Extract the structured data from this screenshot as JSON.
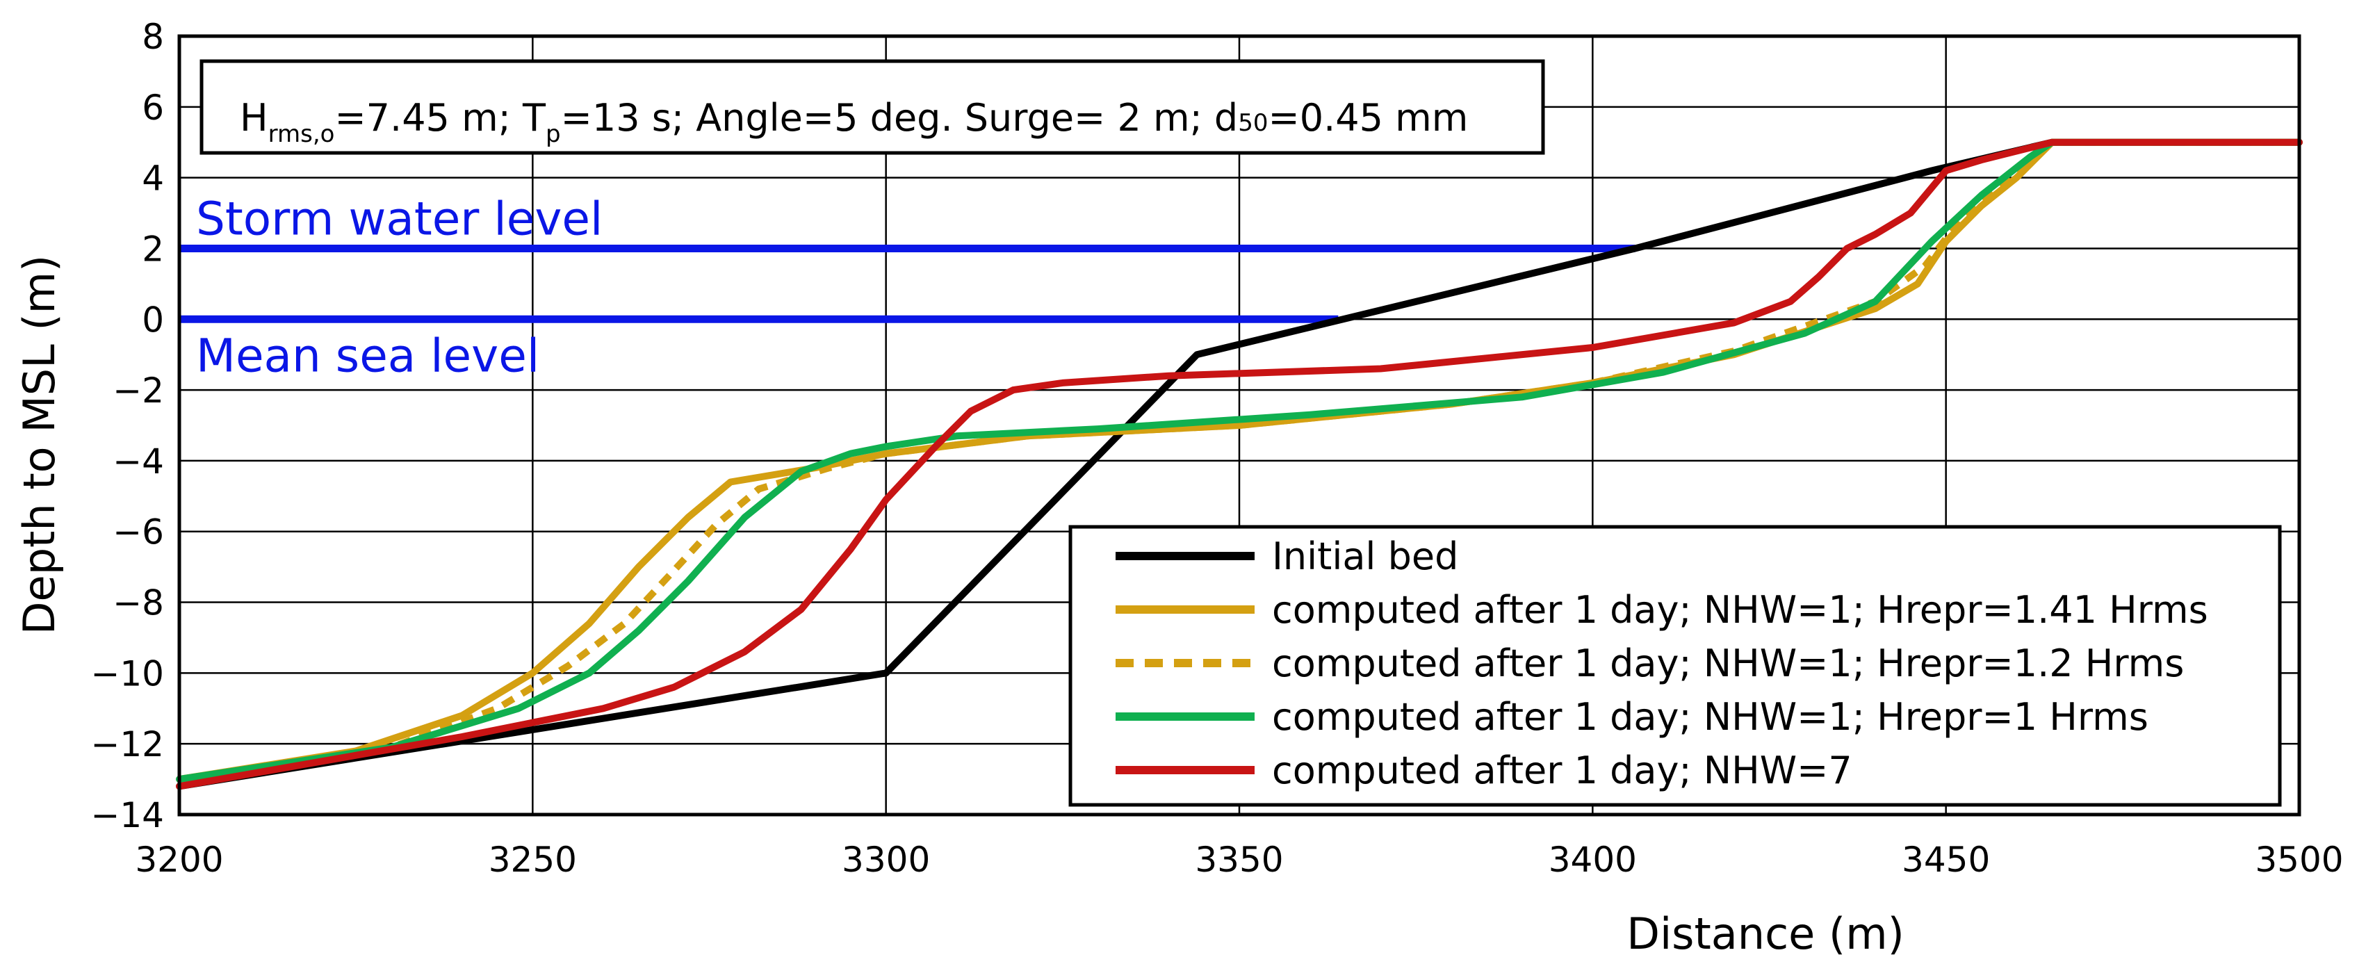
{
  "chart_data": {
    "type": "line",
    "title": "",
    "xlabel": "Distance (m)",
    "ylabel": "Depth to MSL (m)",
    "xlim": [
      3200,
      3500
    ],
    "ylim": [
      -14,
      8
    ],
    "xticks": [
      3200,
      3250,
      3300,
      3350,
      3400,
      3450,
      3500
    ],
    "yticks": [
      8,
      6,
      4,
      2,
      0,
      -2,
      -4,
      -6,
      -8,
      -10,
      -12,
      -14
    ],
    "grid": true,
    "info_box": {
      "line1_a": "H",
      "line1_b": "rms,o",
      "line1_c": "=7.45 m; T",
      "line1_d": "p",
      "line1_e": "=13 s; Angle=5 deg.  Surge= 2 m; d",
      "line1_f": "50",
      "line1_g": "=0.45 mm"
    },
    "water_levels": [
      {
        "name": "Storm water level",
        "y": 2,
        "x_end": 3406,
        "color": "#0a16e6"
      },
      {
        "name": "Mean sea level",
        "y": 0,
        "x_end": 3364,
        "color": "#0a16e6"
      }
    ],
    "legend_position": "bottom-right",
    "series": [
      {
        "name": "Initial bed",
        "color": "#000000",
        "dash": "",
        "x": [
          3200,
          3300,
          3344,
          3406,
          3448,
          3465,
          3500
        ],
        "y": [
          -13.2,
          -10,
          -1,
          2,
          4.2,
          5,
          5
        ]
      },
      {
        "name": "computed after 1 day; NHW=1; Hrepr=1.41 Hrms",
        "color": "#d4a012",
        "dash": "",
        "x": [
          3200,
          3225,
          3240,
          3250,
          3258,
          3265,
          3272,
          3278,
          3290,
          3300,
          3320,
          3350,
          3380,
          3400,
          3420,
          3440,
          3446,
          3450,
          3455,
          3460,
          3465,
          3500
        ],
        "y": [
          -13.0,
          -12.2,
          -11.2,
          -10.0,
          -8.6,
          -7.0,
          -5.6,
          -4.6,
          -4.2,
          -3.8,
          -3.3,
          -3.0,
          -2.4,
          -1.8,
          -1.0,
          0.3,
          1.0,
          2.2,
          3.2,
          4.0,
          5.0,
          5.0
        ]
      },
      {
        "name": "computed after 1 day; NHW=1; Hrepr=1.2 Hrms",
        "color": "#d4a012",
        "dash": "18,14",
        "x": [
          3200,
          3230,
          3245,
          3255,
          3263,
          3270,
          3276,
          3282,
          3292,
          3300,
          3320,
          3350,
          3380,
          3400,
          3420,
          3440,
          3447,
          3452,
          3458,
          3465,
          3500
        ],
        "y": [
          -13.0,
          -12.1,
          -11.0,
          -9.8,
          -8.6,
          -7.1,
          -5.8,
          -4.8,
          -4.2,
          -3.8,
          -3.3,
          -3.0,
          -2.4,
          -1.8,
          -0.9,
          0.5,
          1.5,
          2.8,
          3.8,
          5.0,
          5.0
        ]
      },
      {
        "name": "computed after 1 day; NHW=1; Hrepr=1 Hrms",
        "color": "#10b050",
        "dash": "",
        "x": [
          3200,
          3230,
          3248,
          3258,
          3265,
          3272,
          3280,
          3288,
          3295,
          3300,
          3310,
          3330,
          3360,
          3390,
          3410,
          3430,
          3440,
          3448,
          3455,
          3462,
          3465,
          3500
        ],
        "y": [
          -13.0,
          -12.1,
          -11.0,
          -10.0,
          -8.8,
          -7.4,
          -5.6,
          -4.3,
          -3.8,
          -3.6,
          -3.3,
          -3.1,
          -2.7,
          -2.2,
          -1.5,
          -0.4,
          0.5,
          2.2,
          3.5,
          4.6,
          5.0,
          5.0
        ]
      },
      {
        "name": "computed after 1 day; NHW=7",
        "color": "#c81414",
        "dash": "",
        "x": [
          3200,
          3240,
          3260,
          3270,
          3280,
          3288,
          3295,
          3300,
          3307,
          3312,
          3318,
          3325,
          3340,
          3370,
          3400,
          3420,
          3428,
          3432,
          3436,
          3440,
          3445,
          3450,
          3455,
          3465,
          3500
        ],
        "y": [
          -13.2,
          -11.8,
          -11.0,
          -10.4,
          -9.4,
          -8.2,
          -6.5,
          -5.1,
          -3.6,
          -2.6,
          -2.0,
          -1.8,
          -1.6,
          -1.4,
          -0.8,
          -0.1,
          0.5,
          1.2,
          2.0,
          2.4,
          3.0,
          4.2,
          4.5,
          5.0,
          5.0
        ]
      }
    ]
  }
}
